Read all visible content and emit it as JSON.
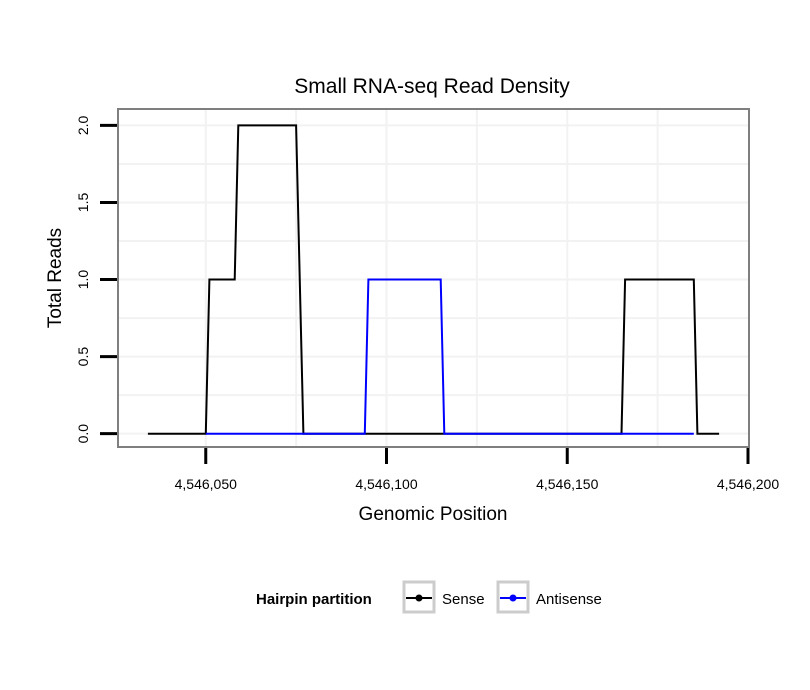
{
  "chart_data": {
    "type": "line",
    "title": "Small RNA-seq Read Density",
    "xlabel": "Genomic Position",
    "ylabel": "Total Reads",
    "xlim": [
      4546026,
      4546200
    ],
    "ylim": [
      -0.08,
      2.1
    ],
    "x_ticks": [
      4546050,
      4546100,
      4546150,
      4546200
    ],
    "x_tick_labels": [
      "4,546,050",
      "4,546,100",
      "4,546,150",
      "4,546,200"
    ],
    "y_ticks": [
      0,
      0.5,
      1,
      1.5,
      2
    ],
    "y_tick_labels": [
      "0.0",
      "0.5",
      "1.0",
      "1.5",
      "2.0"
    ],
    "grid": true,
    "legend": {
      "position": "bottom",
      "title": "Hairpin partition",
      "entries": [
        "Sense",
        "Antisense"
      ]
    },
    "series": [
      {
        "name": "Sense",
        "color": "#000000",
        "x": [
          4546034,
          4546050,
          4546051,
          4546058,
          4546059,
          4546075,
          4546077,
          4546165,
          4546166,
          4546185,
          4546186,
          4546192
        ],
        "values": [
          0,
          0,
          1,
          1,
          2,
          2,
          0,
          0,
          1,
          1,
          0,
          0
        ]
      },
      {
        "name": "Antisense",
        "color": "#0000ff",
        "x": [
          4546050,
          4546094,
          4546095,
          4546115,
          4546116,
          4546165,
          4546185
        ],
        "values": [
          0,
          0,
          1,
          1,
          0,
          0,
          0
        ]
      }
    ]
  }
}
